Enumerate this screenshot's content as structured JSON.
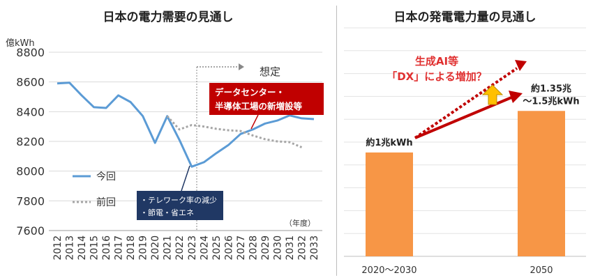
{
  "chart_data": [
    {
      "type": "line",
      "title": "日本の電力需要の見通し",
      "ylabel": "億kWh",
      "xlabel": "（年度）",
      "ylim": [
        7600,
        8800
      ],
      "yticks": [
        7600,
        7800,
        8000,
        8200,
        8400,
        8600,
        8800
      ],
      "x": [
        "2012",
        "2013",
        "2014",
        "2015",
        "2016",
        "2017",
        "2018",
        "2019",
        "2020",
        "2021",
        "2022",
        "2023",
        "2024",
        "2025",
        "2026",
        "2027",
        "2028",
        "2029",
        "2030",
        "2031",
        "2032",
        "2033"
      ],
      "grid": true,
      "legend_position": "bottom-left",
      "series": [
        {
          "name": "今回",
          "style": "solid",
          "color": "#5b9bd5",
          "values": [
            8590,
            8595,
            8510,
            8430,
            8425,
            8510,
            8465,
            8370,
            8190,
            8370,
            8210,
            8030,
            8060,
            8120,
            8175,
            8250,
            8280,
            8320,
            8340,
            8375,
            8355,
            8350
          ]
        },
        {
          "name": "前回",
          "style": "dotted",
          "color": "#a6a6a6",
          "values": [
            null,
            null,
            null,
            null,
            null,
            null,
            null,
            null,
            null,
            8370,
            8280,
            8310,
            8300,
            8285,
            8275,
            8270,
            8240,
            8215,
            8200,
            8195,
            8160,
            null
          ]
        }
      ],
      "annotations": {
        "assumed": "想定",
        "datacenter_line1": "データセンター・",
        "datacenter_line2": "半導体工場の新増設等",
        "telework_line1": "・テレワーク率の減少",
        "telework_line2": "・節電・省エネ"
      },
      "colors": {
        "annotation_red": "#c00000",
        "annotation_navy": "#203864"
      }
    },
    {
      "type": "bar",
      "title": "日本の発電電力量の見通し",
      "categories": [
        "2020～2030",
        "2050"
      ],
      "values": [
        1.0,
        1.4
      ],
      "value_labels": [
        "約1兆kWh",
        "約1.35兆\n～1.5兆kWh"
      ],
      "bar_color": "#f79646",
      "grid": true,
      "annotations": {
        "genai_line1": "生成AI等",
        "genai_line2": "「DX」による増加？"
      },
      "colors": {
        "arrow_red": "#c00000",
        "arrow_up": "#ffc000"
      }
    }
  ]
}
